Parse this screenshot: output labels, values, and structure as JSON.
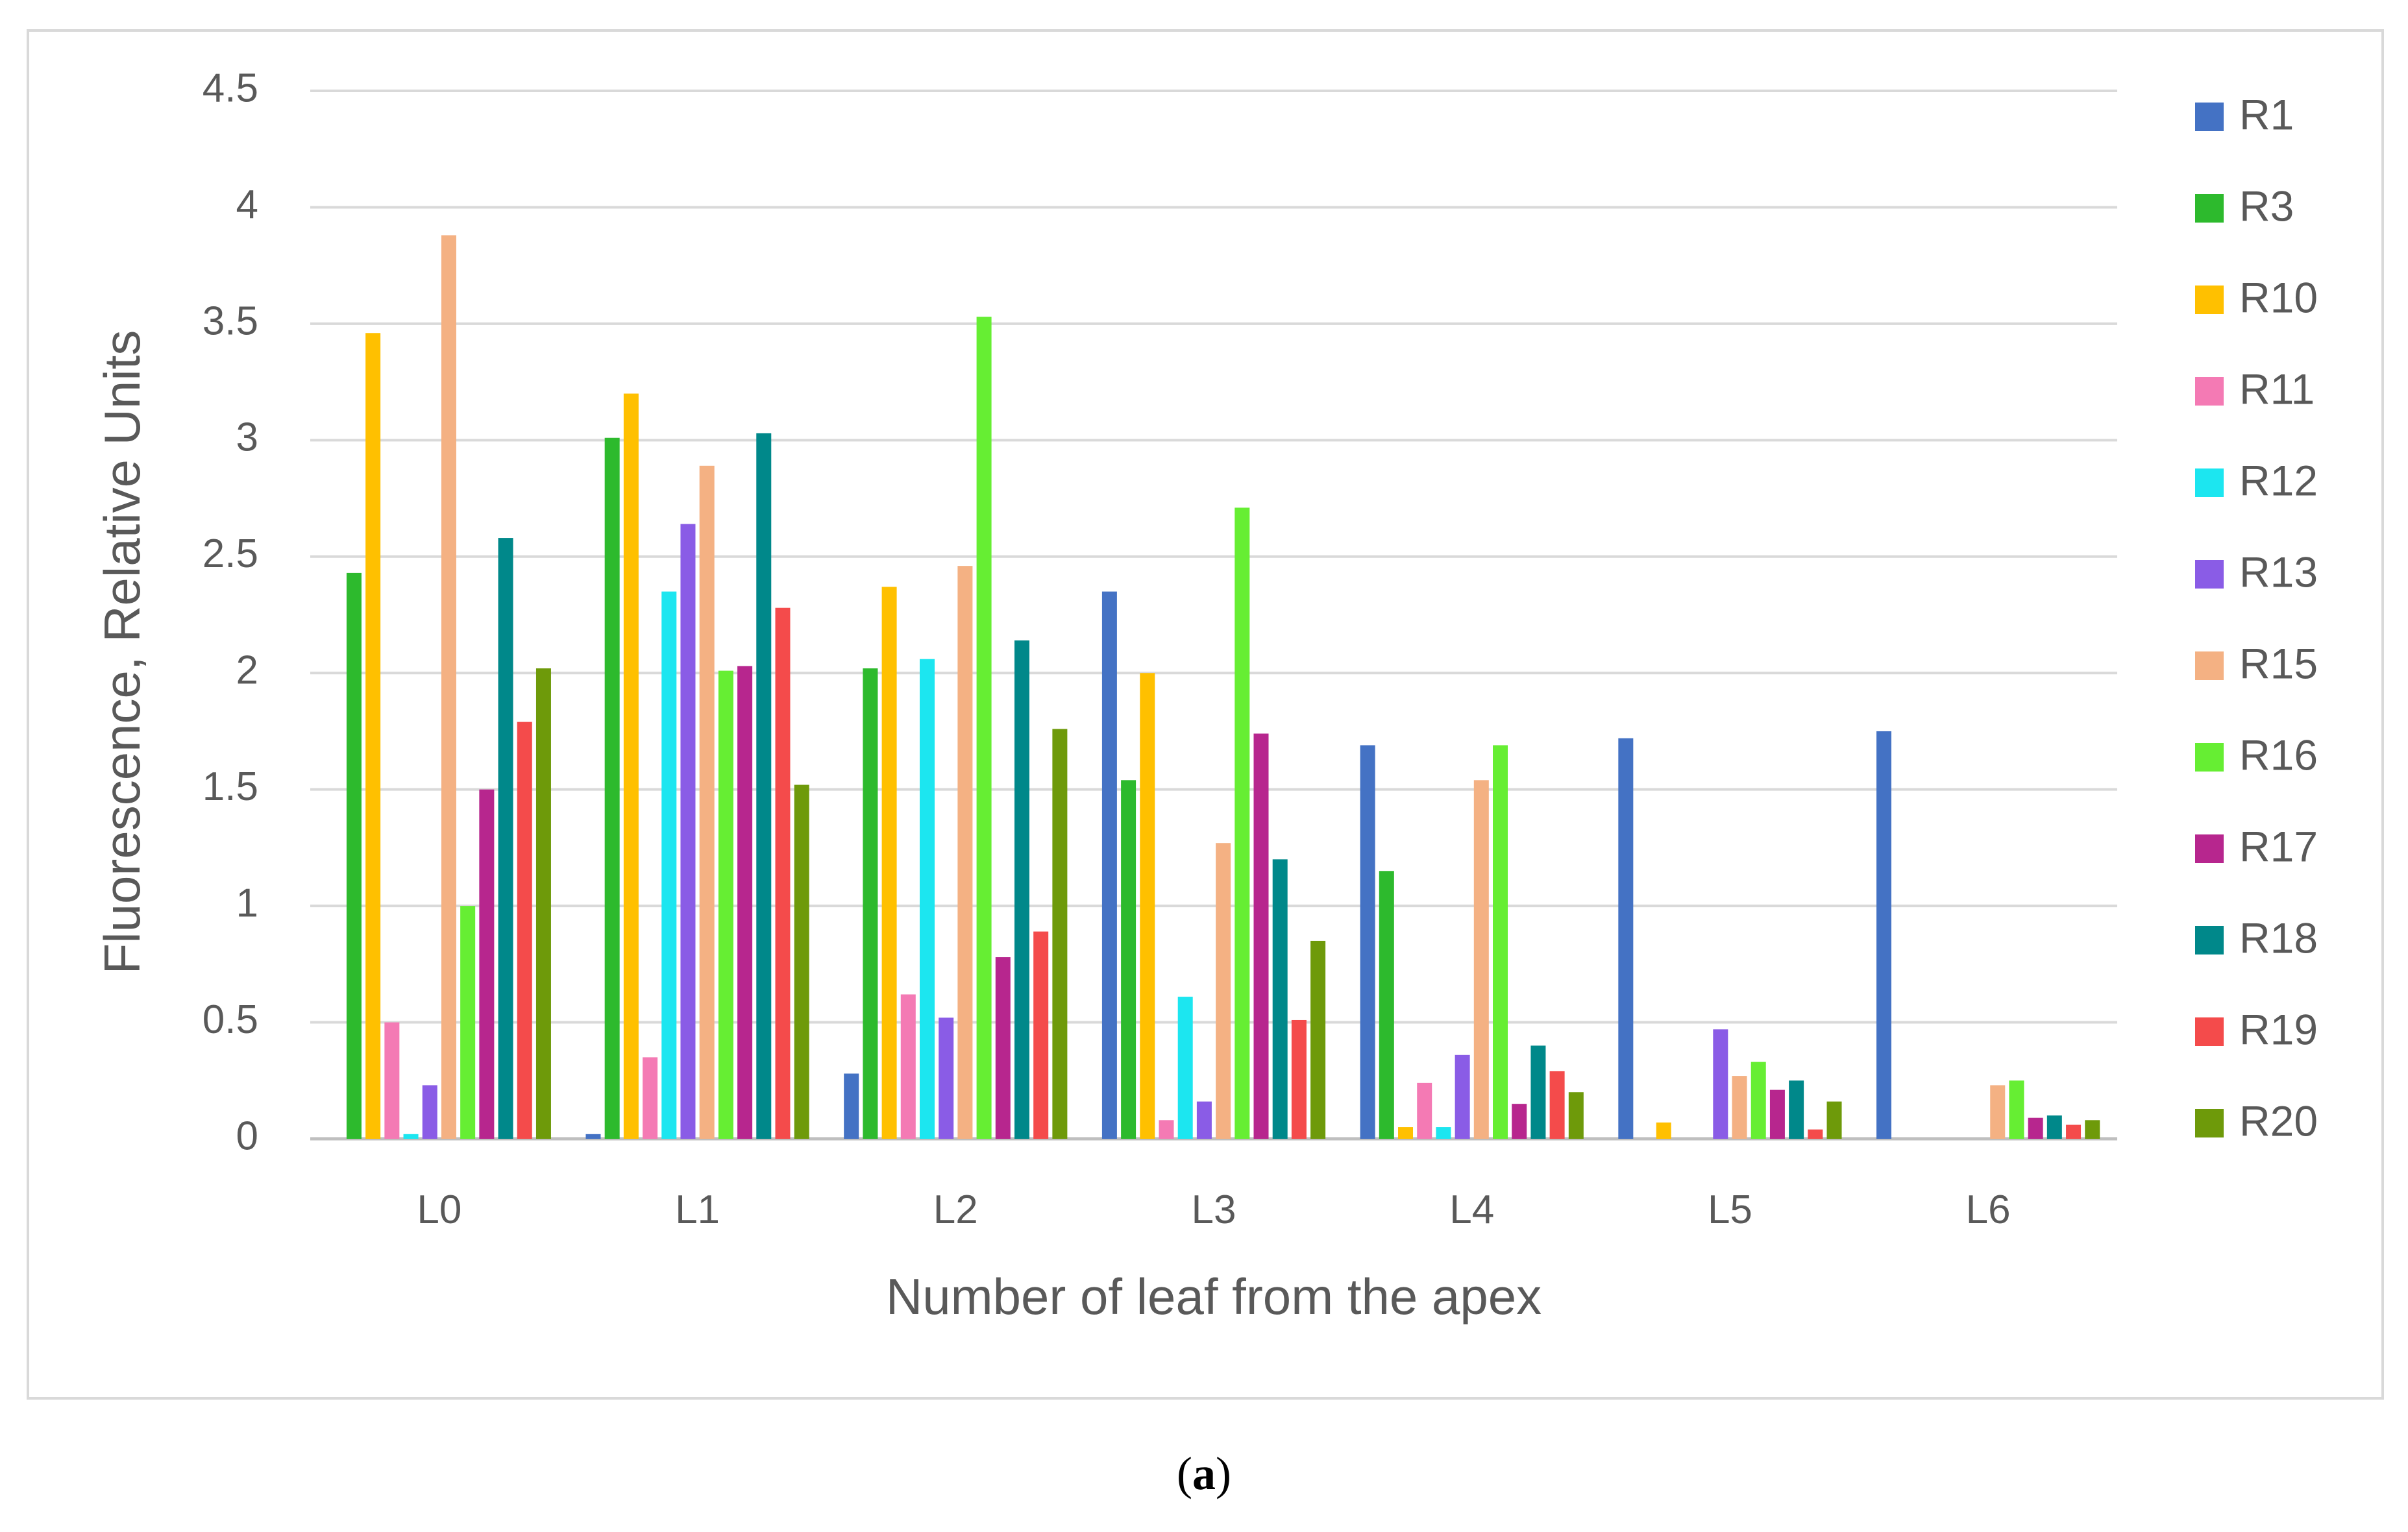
{
  "caption": {
    "open": "(",
    "letter": "a",
    "close": ")"
  },
  "chart_data": {
    "type": "bar",
    "title": "",
    "xlabel": "Number of leaf from the apex",
    "ylabel": "Fluorescence, Relative Units",
    "ylim": [
      0,
      4.5
    ],
    "yticks": [
      "0",
      "0.5",
      "1",
      "1.5",
      "2",
      "2.5",
      "3",
      "3.5",
      "4",
      "4.5"
    ],
    "grid": true,
    "legend_position": "right",
    "categories": [
      "L0",
      "L1",
      "L2",
      "L3",
      "L4",
      "L5",
      "L6"
    ],
    "series": [
      {
        "name": "R1",
        "color": "#4472C4",
        "values": [
          0,
          0.02,
          0.28,
          2.35,
          1.69,
          1.72,
          1.75
        ]
      },
      {
        "name": "R3",
        "color": "#2DBA2D",
        "values": [
          2.43,
          3.01,
          2.02,
          1.54,
          1.15,
          0,
          0
        ]
      },
      {
        "name": "R10",
        "color": "#FFC000",
        "values": [
          3.46,
          3.2,
          2.37,
          2.0,
          0.05,
          0.07,
          0
        ]
      },
      {
        "name": "R11",
        "color": "#F47AB4",
        "values": [
          0.5,
          0.35,
          0.62,
          0.08,
          0.24,
          0,
          0
        ]
      },
      {
        "name": "R12",
        "color": "#1CE6F0",
        "values": [
          0.02,
          2.35,
          2.06,
          0.61,
          0.05,
          0,
          0
        ]
      },
      {
        "name": "R13",
        "color": "#8A5CE6",
        "values": [
          0.23,
          2.64,
          0.52,
          0.16,
          0.36,
          0.47,
          0
        ]
      },
      {
        "name": "R15",
        "color": "#F4B183",
        "values": [
          3.88,
          2.89,
          2.46,
          1.27,
          1.54,
          0.27,
          0.23
        ]
      },
      {
        "name": "R16",
        "color": "#66EE33",
        "values": [
          1.0,
          2.01,
          3.53,
          2.71,
          1.69,
          0.33,
          0.25
        ]
      },
      {
        "name": "R17",
        "color": "#B7268E",
        "values": [
          1.5,
          2.03,
          0.78,
          1.74,
          0.15,
          0.21,
          0.09
        ]
      },
      {
        "name": "R18",
        "color": "#00888A",
        "values": [
          2.58,
          3.03,
          2.14,
          1.2,
          0.4,
          0.25,
          0.1
        ]
      },
      {
        "name": "R19",
        "color": "#F44B4B",
        "values": [
          1.79,
          2.28,
          0.89,
          0.51,
          0.29,
          0.04,
          0.06
        ]
      },
      {
        "name": "R20",
        "color": "#6E9A0A",
        "values": [
          2.02,
          1.52,
          1.76,
          0.85,
          0.2,
          0.16,
          0.08
        ]
      }
    ]
  }
}
